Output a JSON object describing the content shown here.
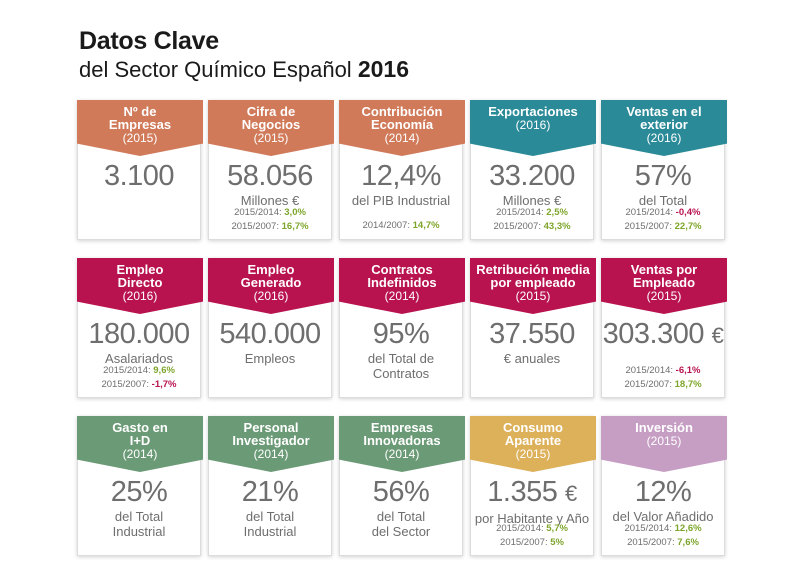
{
  "header": {
    "title": "Datos Clave",
    "subtitle": "del Sector Químico Español",
    "year": "2016"
  },
  "rows": [
    [
      {
        "color": "#d07a5a",
        "label": "Nº de\nEmpresas",
        "year": "(2015)",
        "value": "3.100",
        "unit": "",
        "sub": "",
        "stats": []
      },
      {
        "color": "#d07a5a",
        "label": "Cifra de\nNegocios",
        "year": "(2015)",
        "value": "58.056",
        "unit": "",
        "sub": "Millones €",
        "stats": [
          {
            "label": "2015/2014:",
            "value": "3,0%",
            "trend": "pos"
          },
          {
            "label": "2015/2007:",
            "value": "16,7%",
            "trend": "pos"
          }
        ]
      },
      {
        "color": "#d07a5a",
        "label": "Contribución\nEconomía",
        "year": "(2014)",
        "value": "12,4%",
        "unit": "",
        "sub": "del PIB Industrial",
        "stats": [
          {
            "label": "2014/2007:",
            "value": "14,7%",
            "trend": "pos"
          }
        ]
      },
      {
        "color": "#2a8a98",
        "label": "Exportaciones",
        "year": "(2016)",
        "value": "33.200",
        "unit": "",
        "sub": "Millones €",
        "stats": [
          {
            "label": "2015/2014:",
            "value": "2,5%",
            "trend": "pos"
          },
          {
            "label": "2015/2007:",
            "value": "43,3%",
            "trend": "pos"
          }
        ]
      },
      {
        "color": "#2a8a98",
        "label": "Ventas en el\nexterior",
        "year": "(2016)",
        "value": "57%",
        "unit": "",
        "sub": "del Total",
        "stats": [
          {
            "label": "2015/2014:",
            "value": "-0,4%",
            "trend": "neg"
          },
          {
            "label": "2015/2007:",
            "value": "22,7%",
            "trend": "pos"
          }
        ]
      }
    ],
    [
      {
        "color": "#b8134f",
        "label": "Empleo\nDirecto",
        "year": "(2016)",
        "value": "180.000",
        "unit": "",
        "sub": "Asalariados",
        "stats": [
          {
            "label": "2015/2014:",
            "value": "9,6%",
            "trend": "pos"
          },
          {
            "label": "2015/2007:",
            "value": "-1,7%",
            "trend": "neg"
          }
        ]
      },
      {
        "color": "#b8134f",
        "label": "Empleo\nGenerado",
        "year": "(2016)",
        "value": "540.000",
        "unit": "",
        "sub": "Empleos",
        "stats": []
      },
      {
        "color": "#b8134f",
        "label": "Contratos\nIndefinidos",
        "year": "(2014)",
        "value": "95%",
        "unit": "",
        "sub": "del Total de\nContratos",
        "stats": []
      },
      {
        "color": "#b8134f",
        "label": "Retribución media\npor empleado",
        "year": "(2015)",
        "value": "37.550",
        "unit": "",
        "sub": "€ anuales",
        "stats": []
      },
      {
        "color": "#b8134f",
        "label": "Ventas por\nEmpleado",
        "year": "(2015)",
        "value": "303.300",
        "unit": "€",
        "sub": "",
        "stats": [
          {
            "label": "2015/2014:",
            "value": "-6,1%",
            "trend": "neg"
          },
          {
            "label": "2015/2007:",
            "value": "18,7%",
            "trend": "pos"
          }
        ]
      }
    ],
    [
      {
        "color": "#6b9a76",
        "label": "Gasto en\nI+D",
        "year": "(2014)",
        "value": "25%",
        "unit": "",
        "sub": "del Total\nIndustrial",
        "stats": []
      },
      {
        "color": "#6b9a76",
        "label": "Personal\nInvestigador",
        "year": "(2014)",
        "value": "21%",
        "unit": "",
        "sub": "del Total\nIndustrial",
        "stats": []
      },
      {
        "color": "#6b9a76",
        "label": "Empresas\nInnovadoras",
        "year": "(2014)",
        "value": "56%",
        "unit": "",
        "sub": "del Total\ndel Sector",
        "stats": []
      },
      {
        "color": "#ddb05a",
        "label": "Consumo\nAparente",
        "year": "(2015)",
        "value": "1.355",
        "unit": "€",
        "sub": "por Habitante y Año",
        "stats": [
          {
            "label": "2015/2014:",
            "value": "5,7%",
            "trend": "pos"
          },
          {
            "label": "2015/2007:",
            "value": "5%",
            "trend": "pos"
          }
        ]
      },
      {
        "color": "#c69ec4",
        "label": "Inversión",
        "year": "(2015)",
        "value": "12%",
        "unit": "",
        "sub": "del Valor Añadido",
        "stats": [
          {
            "label": "2015/2014:",
            "value": "12,6%",
            "trend": "pos"
          },
          {
            "label": "2015/2007:",
            "value": "7,6%",
            "trend": "pos"
          }
        ]
      }
    ]
  ]
}
